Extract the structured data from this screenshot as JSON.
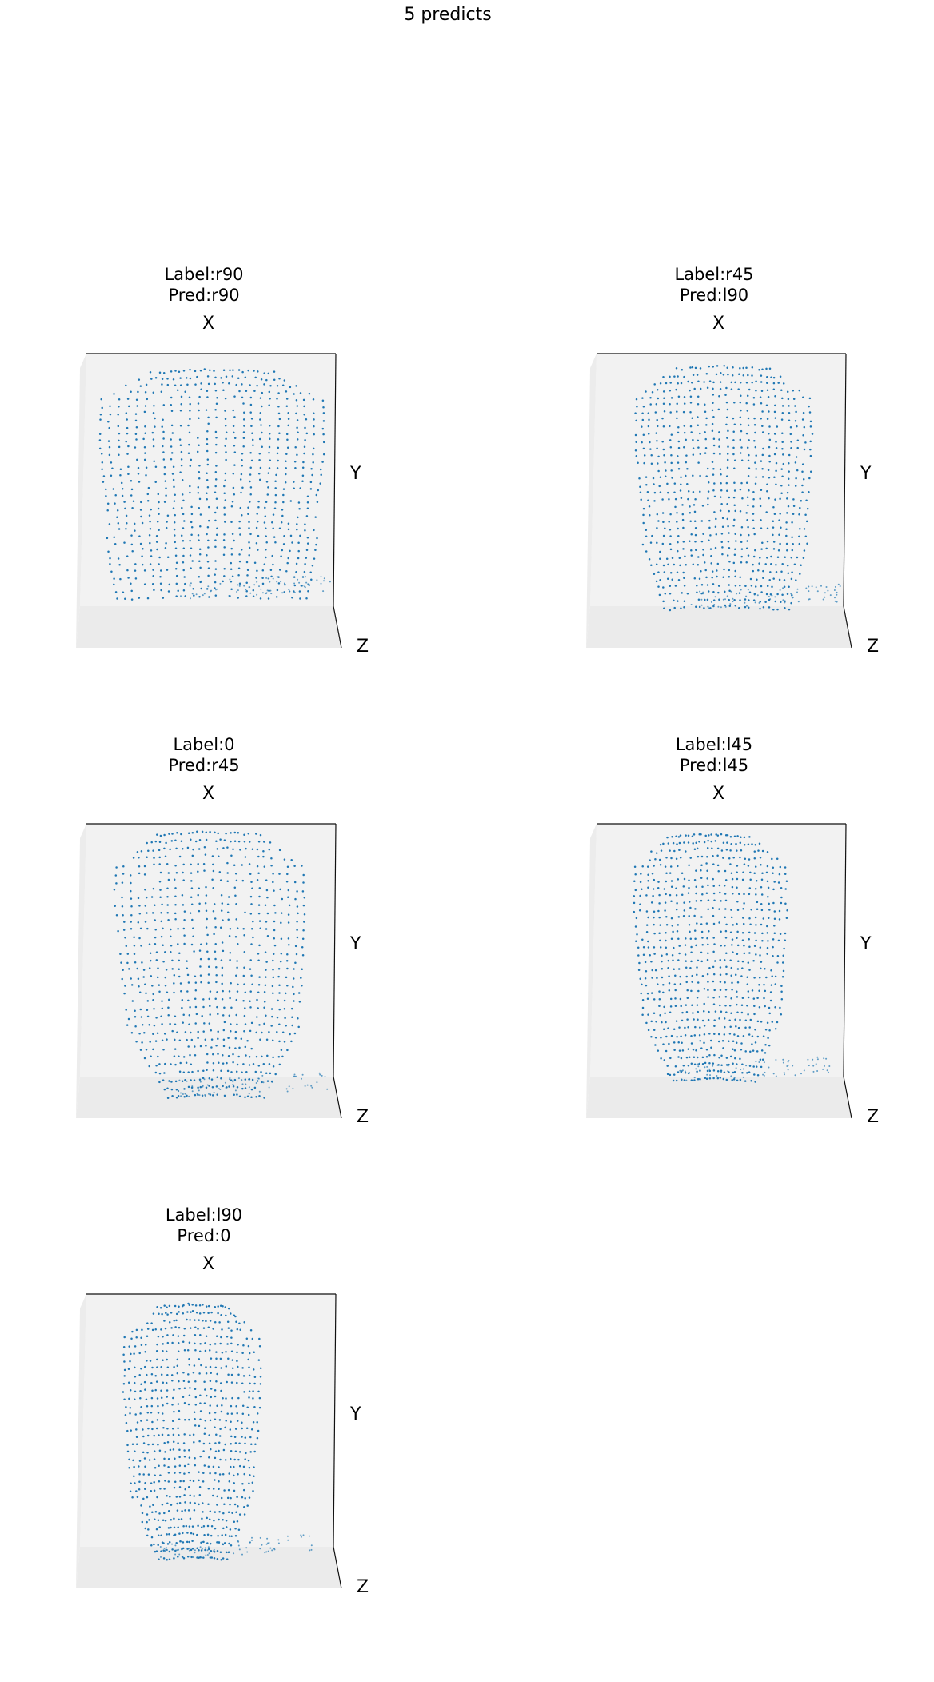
{
  "suptitle": "5 predicts",
  "chart_data": {
    "type": "scatter",
    "subtype": "3d point cloud",
    "point_color": "#1f77b4",
    "panels": [
      {
        "label": "Label:r90",
        "pred": "Pred:r90",
        "view": "r90",
        "axes": {
          "x": "X",
          "y": "Y",
          "z": "Z"
        }
      },
      {
        "label": "Label:r45",
        "pred": "Pred:l90",
        "view": "r45",
        "axes": {
          "x": "X",
          "y": "Y",
          "z": "Z"
        }
      },
      {
        "label": "Label:0",
        "pred": "Pred:r45",
        "view": "0",
        "axes": {
          "x": "X",
          "y": "Y",
          "z": "Z"
        }
      },
      {
        "label": "Label:l45",
        "pred": "Pred:l45",
        "view": "l45",
        "axes": {
          "x": "X",
          "y": "Y",
          "z": "Z"
        }
      },
      {
        "label": "Label:l90",
        "pred": "Pred:0",
        "view": "l90",
        "axes": {
          "x": "X",
          "y": "Y",
          "z": "Z"
        }
      }
    ]
  }
}
